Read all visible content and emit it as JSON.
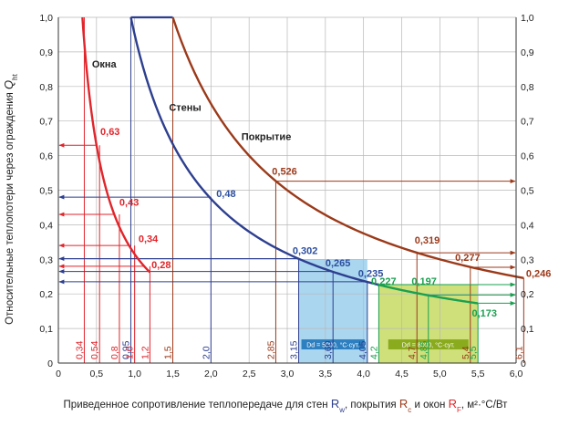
{
  "colors": {
    "windows": "#e0252b",
    "walls": "#2d3f8f",
    "roof": "#9b3a1a",
    "wall_points": "#2d4f9f",
    "green": "#1aa050",
    "band_blue": "#aad6f0",
    "band_green": "#cfe07a",
    "band_label_blue": "#2d7fc0",
    "band_label_green": "#8aab1e",
    "grid": "#b8b8b8",
    "axis": "#333333"
  },
  "chart_data": {
    "type": "line",
    "xlabel_parts": [
      "Приведенное сопротивление теплопередаче для стен ",
      "R",
      "w",
      ", покрытия ",
      "R",
      "c",
      " и окон ",
      "R",
      "F",
      ", м²·°С/Вт"
    ],
    "ylabel_parts": [
      "Относительные теплопотери через ограждения ",
      "Q",
      "ht"
    ],
    "xlim": [
      0,
      6
    ],
    "ylim": [
      0,
      1
    ],
    "x_ticks": [
      "0",
      "0,5",
      "1,0",
      "1,5",
      "2,0",
      "2,5",
      "3,0",
      "3,5",
      "4,0",
      "4,5",
      "5,0",
      "5,5",
      "6,0"
    ],
    "y_ticks": [
      "0",
      "0,1",
      "0,2",
      "0,3",
      "0,4",
      "0,5",
      "0,6",
      "0,7",
      "0,8",
      "0,9",
      "1,0"
    ],
    "grid": true,
    "series": [
      {
        "name": "Окна",
        "color_key": "windows",
        "k": 0.315,
        "x_start": 0.315,
        "x_end": 1.2
      },
      {
        "name": "Стены",
        "color_key": "walls",
        "k": 0.95,
        "x_start": 0.95,
        "x_end": 4.2
      },
      {
        "name": "Покрытие",
        "color_key": "roof",
        "k": 1.5,
        "x_start": 1.5,
        "x_end": 6.1
      },
      {
        "name": "",
        "color_key": "green",
        "k": 0.95,
        "x_start": 4.2,
        "x_end": 5.5
      }
    ],
    "flat_segments": [
      {
        "color_key": "walls",
        "x_from": 0.95,
        "x_to": 1.5,
        "y": 1.0
      },
      {
        "color_key": "roof",
        "x_from": 1.5,
        "x_to": 1.5,
        "y": 1.0
      }
    ],
    "bands": [
      {
        "x_from": 3.15,
        "x_to": 4.05,
        "y_from": 0,
        "y_to": 0.3,
        "color_key": "band_blue",
        "label": "Dd = 5000, °C·сут.",
        "label_color_key": "band_label_blue"
      },
      {
        "x_from": 4.2,
        "x_to": 5.5,
        "y_from": 0,
        "y_to": 0.227,
        "color_key": "band_green",
        "label": "Dd = 8000, °C·сут.",
        "label_color_key": "band_label_green"
      }
    ],
    "points": [
      {
        "x": 0.5,
        "y": 0.63,
        "label": "0,63",
        "color_key": "windows",
        "lx": 0.55,
        "ly": 0.66
      },
      {
        "x": 0.73,
        "y": 0.43,
        "label": "0,43",
        "color_key": "windows",
        "lx": 0.8,
        "ly": 0.455
      },
      {
        "x": 0.92,
        "y": 0.34,
        "label": "0,34",
        "color_key": "windows",
        "lx": 1.05,
        "ly": 0.35
      },
      {
        "x": 1.12,
        "y": 0.28,
        "label": "0,28",
        "color_key": "windows",
        "lx": 1.22,
        "ly": 0.275
      },
      {
        "x": 2.0,
        "y": 0.48,
        "label": "0,48",
        "color_key": "wall_points",
        "lx": 2.07,
        "ly": 0.48
      },
      {
        "x": 3.15,
        "y": 0.302,
        "label": "0,302",
        "color_key": "wall_points",
        "lx": 3.07,
        "ly": 0.315
      },
      {
        "x": 3.6,
        "y": 0.265,
        "label": "0,265",
        "color_key": "wall_points",
        "lx": 3.5,
        "ly": 0.28
      },
      {
        "x": 4.05,
        "y": 0.235,
        "label": "0,235",
        "color_key": "wall_points",
        "lx": 3.93,
        "ly": 0.25
      },
      {
        "x": 4.2,
        "y": 0.227,
        "label": "0,227",
        "color_key": "green",
        "lx": 4.1,
        "ly": 0.227
      },
      {
        "x": 4.85,
        "y": 0.197,
        "label": "0,197",
        "color_key": "green",
        "lx": 4.63,
        "ly": 0.227
      },
      {
        "x": 5.5,
        "y": 0.173,
        "label": "0,173",
        "color_key": "green",
        "lx": 5.42,
        "ly": 0.135
      },
      {
        "x": 2.85,
        "y": 0.526,
        "label": "0,526",
        "color_key": "roof",
        "lx": 2.8,
        "ly": 0.545
      },
      {
        "x": 4.7,
        "y": 0.319,
        "label": "0,319",
        "color_key": "roof",
        "lx": 4.67,
        "ly": 0.345
      },
      {
        "x": 5.4,
        "y": 0.277,
        "label": "0,277",
        "color_key": "roof",
        "lx": 5.2,
        "ly": 0.295
      },
      {
        "x": 6.1,
        "y": 0.246,
        "label": "0,246",
        "color_key": "roof",
        "lx": 6.13,
        "ly": 0.25
      }
    ],
    "x_markers": [
      {
        "x": 0.34,
        "label": "0,34",
        "color_key": "windows"
      },
      {
        "x": 0.54,
        "label": "0,54",
        "color_key": "windows"
      },
      {
        "x": 0.8,
        "label": "0,8",
        "color_key": "windows"
      },
      {
        "x": 0.95,
        "label": "0,95",
        "color_key": "walls"
      },
      {
        "x": 1.0,
        "label": "1,0",
        "color_key": "windows"
      },
      {
        "x": 1.2,
        "label": "1,2",
        "color_key": "windows"
      },
      {
        "x": 1.5,
        "label": "1,5",
        "color_key": "roof"
      },
      {
        "x": 2.0,
        "label": "2,0",
        "color_key": "walls"
      },
      {
        "x": 2.85,
        "label": "2,85",
        "color_key": "roof"
      },
      {
        "x": 3.15,
        "label": "3,15",
        "color_key": "walls"
      },
      {
        "x": 3.6,
        "label": "3,60",
        "color_key": "walls"
      },
      {
        "x": 4.05,
        "label": "4,05",
        "color_key": "walls"
      },
      {
        "x": 4.2,
        "label": "4,2",
        "color_key": "green"
      },
      {
        "x": 4.7,
        "label": "4,7",
        "color_key": "roof"
      },
      {
        "x": 4.85,
        "label": "4,85",
        "color_key": "green"
      },
      {
        "x": 5.4,
        "label": "5,4",
        "color_key": "roof"
      },
      {
        "x": 5.5,
        "label": "5,5",
        "color_key": "green"
      },
      {
        "x": 6.1,
        "label": "6,1",
        "color_key": "roof"
      }
    ],
    "drop_lines": [
      {
        "x": 0.34,
        "y": 1.0,
        "color_key": "windows"
      },
      {
        "x": 0.54,
        "y": 0.63,
        "color_key": "windows"
      },
      {
        "x": 0.8,
        "y": 0.43,
        "color_key": "windows"
      },
      {
        "x": 0.95,
        "y": 1.0,
        "color_key": "walls"
      },
      {
        "x": 1.0,
        "y": 0.34,
        "color_key": "windows"
      },
      {
        "x": 1.2,
        "y": 0.28,
        "color_key": "windows"
      },
      {
        "x": 1.5,
        "y": 1.0,
        "color_key": "roof"
      },
      {
        "x": 2.0,
        "y": 0.48,
        "color_key": "walls"
      },
      {
        "x": 2.85,
        "y": 0.526,
        "color_key": "roof"
      },
      {
        "x": 3.15,
        "y": 0.302,
        "color_key": "walls"
      },
      {
        "x": 3.6,
        "y": 0.265,
        "color_key": "walls"
      },
      {
        "x": 4.05,
        "y": 0.235,
        "color_key": "walls"
      },
      {
        "x": 4.2,
        "y": 0.227,
        "color_key": "green"
      },
      {
        "x": 4.7,
        "y": 0.319,
        "color_key": "roof"
      },
      {
        "x": 4.85,
        "y": 0.197,
        "color_key": "green"
      },
      {
        "x": 5.4,
        "y": 0.277,
        "color_key": "roof"
      },
      {
        "x": 5.5,
        "y": 0.173,
        "color_key": "green"
      },
      {
        "x": 6.1,
        "y": 0.246,
        "color_key": "roof"
      }
    ],
    "left_arrows": [
      {
        "y": 0.63,
        "x": 0.5,
        "color_key": "windows"
      },
      {
        "y": 0.48,
        "x": 2.0,
        "color_key": "walls"
      },
      {
        "y": 0.43,
        "x": 0.73,
        "color_key": "windows"
      },
      {
        "y": 0.34,
        "x": 0.92,
        "color_key": "windows"
      },
      {
        "y": 0.302,
        "x": 3.15,
        "color_key": "walls"
      },
      {
        "y": 0.28,
        "x": 1.12,
        "color_key": "windows"
      },
      {
        "y": 0.265,
        "x": 3.6,
        "color_key": "walls"
      },
      {
        "y": 0.235,
        "x": 4.05,
        "color_key": "walls"
      }
    ],
    "right_arrows": [
      {
        "y": 0.526,
        "x": 2.85,
        "color_key": "roof"
      },
      {
        "y": 0.319,
        "x": 4.7,
        "color_key": "roof"
      },
      {
        "y": 0.277,
        "x": 5.4,
        "color_key": "roof"
      },
      {
        "y": 0.227,
        "x": 4.2,
        "color_key": "green"
      },
      {
        "y": 0.197,
        "x": 4.85,
        "color_key": "green"
      },
      {
        "y": 0.173,
        "x": 5.5,
        "color_key": "green"
      }
    ],
    "curve_labels": [
      {
        "text": "Окна",
        "x": 0.44,
        "y": 0.855
      },
      {
        "text": "Стены",
        "x": 1.45,
        "y": 0.73
      },
      {
        "text": "Покрытие",
        "x": 2.4,
        "y": 0.645
      }
    ]
  }
}
